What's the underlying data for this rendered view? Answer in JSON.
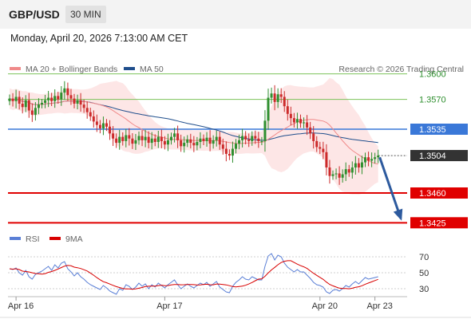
{
  "header": {
    "pair": "GBP/USD",
    "timeframe": "30 MIN"
  },
  "datetime": "Monday, April 20, 2026 7:13:00 AM CET",
  "copyright": "Research © 2026 Trading Central",
  "colors": {
    "up": "#2f8f2f",
    "down": "#cc2b2b",
    "ma20": "#f08a8a",
    "ma50": "#1f4e8c",
    "bollinger_fill": "#fde3e3",
    "resistance": "#7cc25a",
    "pivot": "#3a78d8",
    "support": "#e00000",
    "current": "#333333",
    "rsi": "#5a7fd6",
    "rsi_ma": "#d80000",
    "arrow": "#2d5a9e"
  },
  "chart_data": [
    {
      "type": "candlestick",
      "legend": [
        {
          "name": "MA 20 + Bollinger Bands",
          "color": "#f08a8a"
        },
        {
          "name": "MA 50",
          "color": "#1f4e8c"
        }
      ],
      "ylim": [
        1.3415,
        1.361
      ],
      "x_ticks": [
        {
          "label": "Apr 16",
          "index": 2
        },
        {
          "label": "Apr 17",
          "index": 48
        },
        {
          "label": "Apr 20",
          "index": 96
        },
        {
          "label": "Apr 23",
          "index": 113
        }
      ],
      "levels": [
        {
          "label": "1.3600",
          "value": 1.36,
          "kind": "resistance"
        },
        {
          "label": "1.3570",
          "value": 1.357,
          "kind": "resistance"
        },
        {
          "label": "1.3535",
          "value": 1.3535,
          "kind": "pivot"
        },
        {
          "label": "1.3504",
          "value": 1.3504,
          "kind": "current"
        },
        {
          "label": "1.3460",
          "value": 1.346,
          "kind": "support"
        },
        {
          "label": "1.3425",
          "value": 1.3425,
          "kind": "support"
        }
      ],
      "projection": {
        "from": [
          113,
          1.3502
        ],
        "to": [
          122,
          1.343
        ]
      },
      "closes": [
        1.3571,
        1.3568,
        1.3573,
        1.3565,
        1.3561,
        1.3569,
        1.3557,
        1.3552,
        1.356,
        1.3564,
        1.3566,
        1.3569,
        1.3572,
        1.3568,
        1.3574,
        1.357,
        1.3578,
        1.3583,
        1.3575,
        1.3571,
        1.3565,
        1.3569,
        1.3564,
        1.356,
        1.3555,
        1.355,
        1.3544,
        1.354,
        1.3536,
        1.3542,
        1.3538,
        1.353,
        1.3524,
        1.3519,
        1.3526,
        1.3521,
        1.3528,
        1.3524,
        1.3518,
        1.3522,
        1.3527,
        1.3522,
        1.3526,
        1.3519,
        1.3524,
        1.352,
        1.3526,
        1.3521,
        1.3517,
        1.3522,
        1.3526,
        1.353,
        1.3522,
        1.3515,
        1.3519,
        1.3523,
        1.3519,
        1.3516,
        1.352,
        1.3524,
        1.3521,
        1.3525,
        1.3518,
        1.3522,
        1.3526,
        1.3517,
        1.3512,
        1.3506,
        1.3504,
        1.3512,
        1.3518,
        1.3522,
        1.3527,
        1.3523,
        1.3521,
        1.3527,
        1.3524,
        1.3521,
        1.3521,
        1.3545,
        1.3572,
        1.3577,
        1.3567,
        1.3576,
        1.3573,
        1.3562,
        1.3553,
        1.3548,
        1.3543,
        1.3547,
        1.3542,
        1.3543,
        1.3537,
        1.353,
        1.3521,
        1.3514,
        1.3512,
        1.3508,
        1.349,
        1.348,
        1.3482,
        1.3483,
        1.3478,
        1.3482,
        1.3488,
        1.3484,
        1.349,
        1.3495,
        1.349,
        1.3496,
        1.3502,
        1.3498,
        1.35,
        1.3502,
        1.3504
      ]
    },
    {
      "type": "line",
      "legend": [
        {
          "name": "RSI",
          "color": "#5a7fd6"
        },
        {
          "name": "9MA",
          "color": "#d80000"
        }
      ],
      "ylim": [
        20,
        80
      ],
      "y_ticks": [
        {
          "label": "70",
          "value": 70
        },
        {
          "label": "50",
          "value": 50
        },
        {
          "label": "30",
          "value": 30
        }
      ],
      "rsi": [
        55,
        54,
        56,
        50,
        47,
        53,
        45,
        42,
        48,
        50,
        52,
        55,
        58,
        53,
        60,
        56,
        62,
        64,
        55,
        51,
        46,
        50,
        45,
        42,
        38,
        35,
        33,
        31,
        29,
        34,
        31,
        27,
        25,
        23,
        30,
        28,
        35,
        33,
        29,
        32,
        37,
        33,
        36,
        30,
        35,
        32,
        37,
        34,
        31,
        35,
        38,
        41,
        35,
        30,
        33,
        36,
        33,
        31,
        34,
        37,
        35,
        38,
        33,
        36,
        39,
        32,
        29,
        26,
        25,
        33,
        38,
        41,
        45,
        42,
        41,
        45,
        43,
        41,
        41,
        58,
        71,
        74,
        66,
        72,
        70,
        62,
        57,
        54,
        51,
        54,
        51,
        51,
        47,
        43,
        38,
        35,
        34,
        32,
        26,
        24,
        28,
        29,
        27,
        30,
        34,
        32,
        36,
        39,
        36,
        40,
        44,
        42,
        43,
        44,
        45
      ],
      "ma9": [
        55,
        54.5,
        55,
        54,
        52,
        51.5,
        51,
        50,
        49,
        48.7,
        48.3,
        48.9,
        50.5,
        51.5,
        53,
        54.7,
        56.5,
        58.3,
        59.2,
        58.7,
        57,
        56.3,
        55.3,
        53.8,
        52.2,
        49.6,
        46.9,
        43.9,
        41.2,
        38.8,
        37.5,
        35.8,
        34.2,
        32.6,
        31.5,
        30.3,
        29.8,
        29.8,
        29.4,
        29.7,
        30.6,
        31.5,
        32.7,
        33.1,
        33.3,
        33.3,
        33.9,
        34.4,
        33.7,
        33.9,
        34.8,
        35.2,
        35.2,
        34.9,
        35,
        35.3,
        35.3,
        35.1,
        34.6,
        34.8,
        35.4,
        35.6,
        35,
        34.9,
        35.9,
        35.7,
        35.3,
        34.8,
        33.8,
        32.7,
        32.3,
        32.8,
        33.3,
        34.3,
        35.9,
        37.8,
        40,
        42,
        42.4,
        45.5,
        49.8,
        53.6,
        56.7,
        60,
        62.8,
        64.4,
        65.1,
        65.1,
        62.9,
        60.8,
        58.9,
        57.4,
        55.4,
        52.4,
        49.4,
        46.7,
        44.2,
        41.7,
        38.3,
        35.4,
        33.6,
        32.1,
        30.7,
        30.2,
        30.2,
        29.9,
        30.6,
        31.7,
        32.4,
        33.7,
        35.6,
        37.1,
        38.6,
        40.2,
        41.7
      ]
    }
  ]
}
